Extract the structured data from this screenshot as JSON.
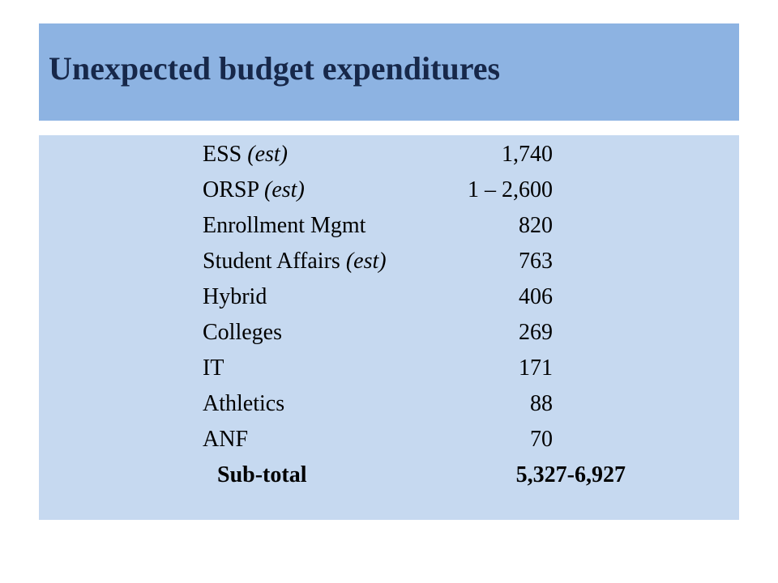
{
  "slide": {
    "title": "Unexpected budget expenditures",
    "items": [
      {
        "name": "ESS",
        "qualifier": "(est)",
        "amount": "1,740"
      },
      {
        "name": "ORSP",
        "qualifier": "(est)",
        "amount": "1 – 2,600"
      },
      {
        "name": "Enrollment Mgmt",
        "qualifier": "",
        "amount": "820"
      },
      {
        "name": "Student Affairs",
        "qualifier": "(est)",
        "amount": "763"
      },
      {
        "name": "Hybrid",
        "qualifier": "",
        "amount": "406"
      },
      {
        "name": "Colleges",
        "qualifier": "",
        "amount": "269"
      },
      {
        "name": "IT",
        "qualifier": "",
        "amount": "171"
      },
      {
        "name": "Athletics",
        "qualifier": "",
        "amount": "88"
      },
      {
        "name": "ANF",
        "qualifier": "",
        "amount": "70"
      }
    ],
    "subtotal": {
      "label": "Sub-total",
      "amount": "5,327-6,927"
    },
    "colors": {
      "title_bar": "#8db3e2",
      "title_text": "#17284a",
      "content_panel": "#c6d9f0"
    }
  }
}
